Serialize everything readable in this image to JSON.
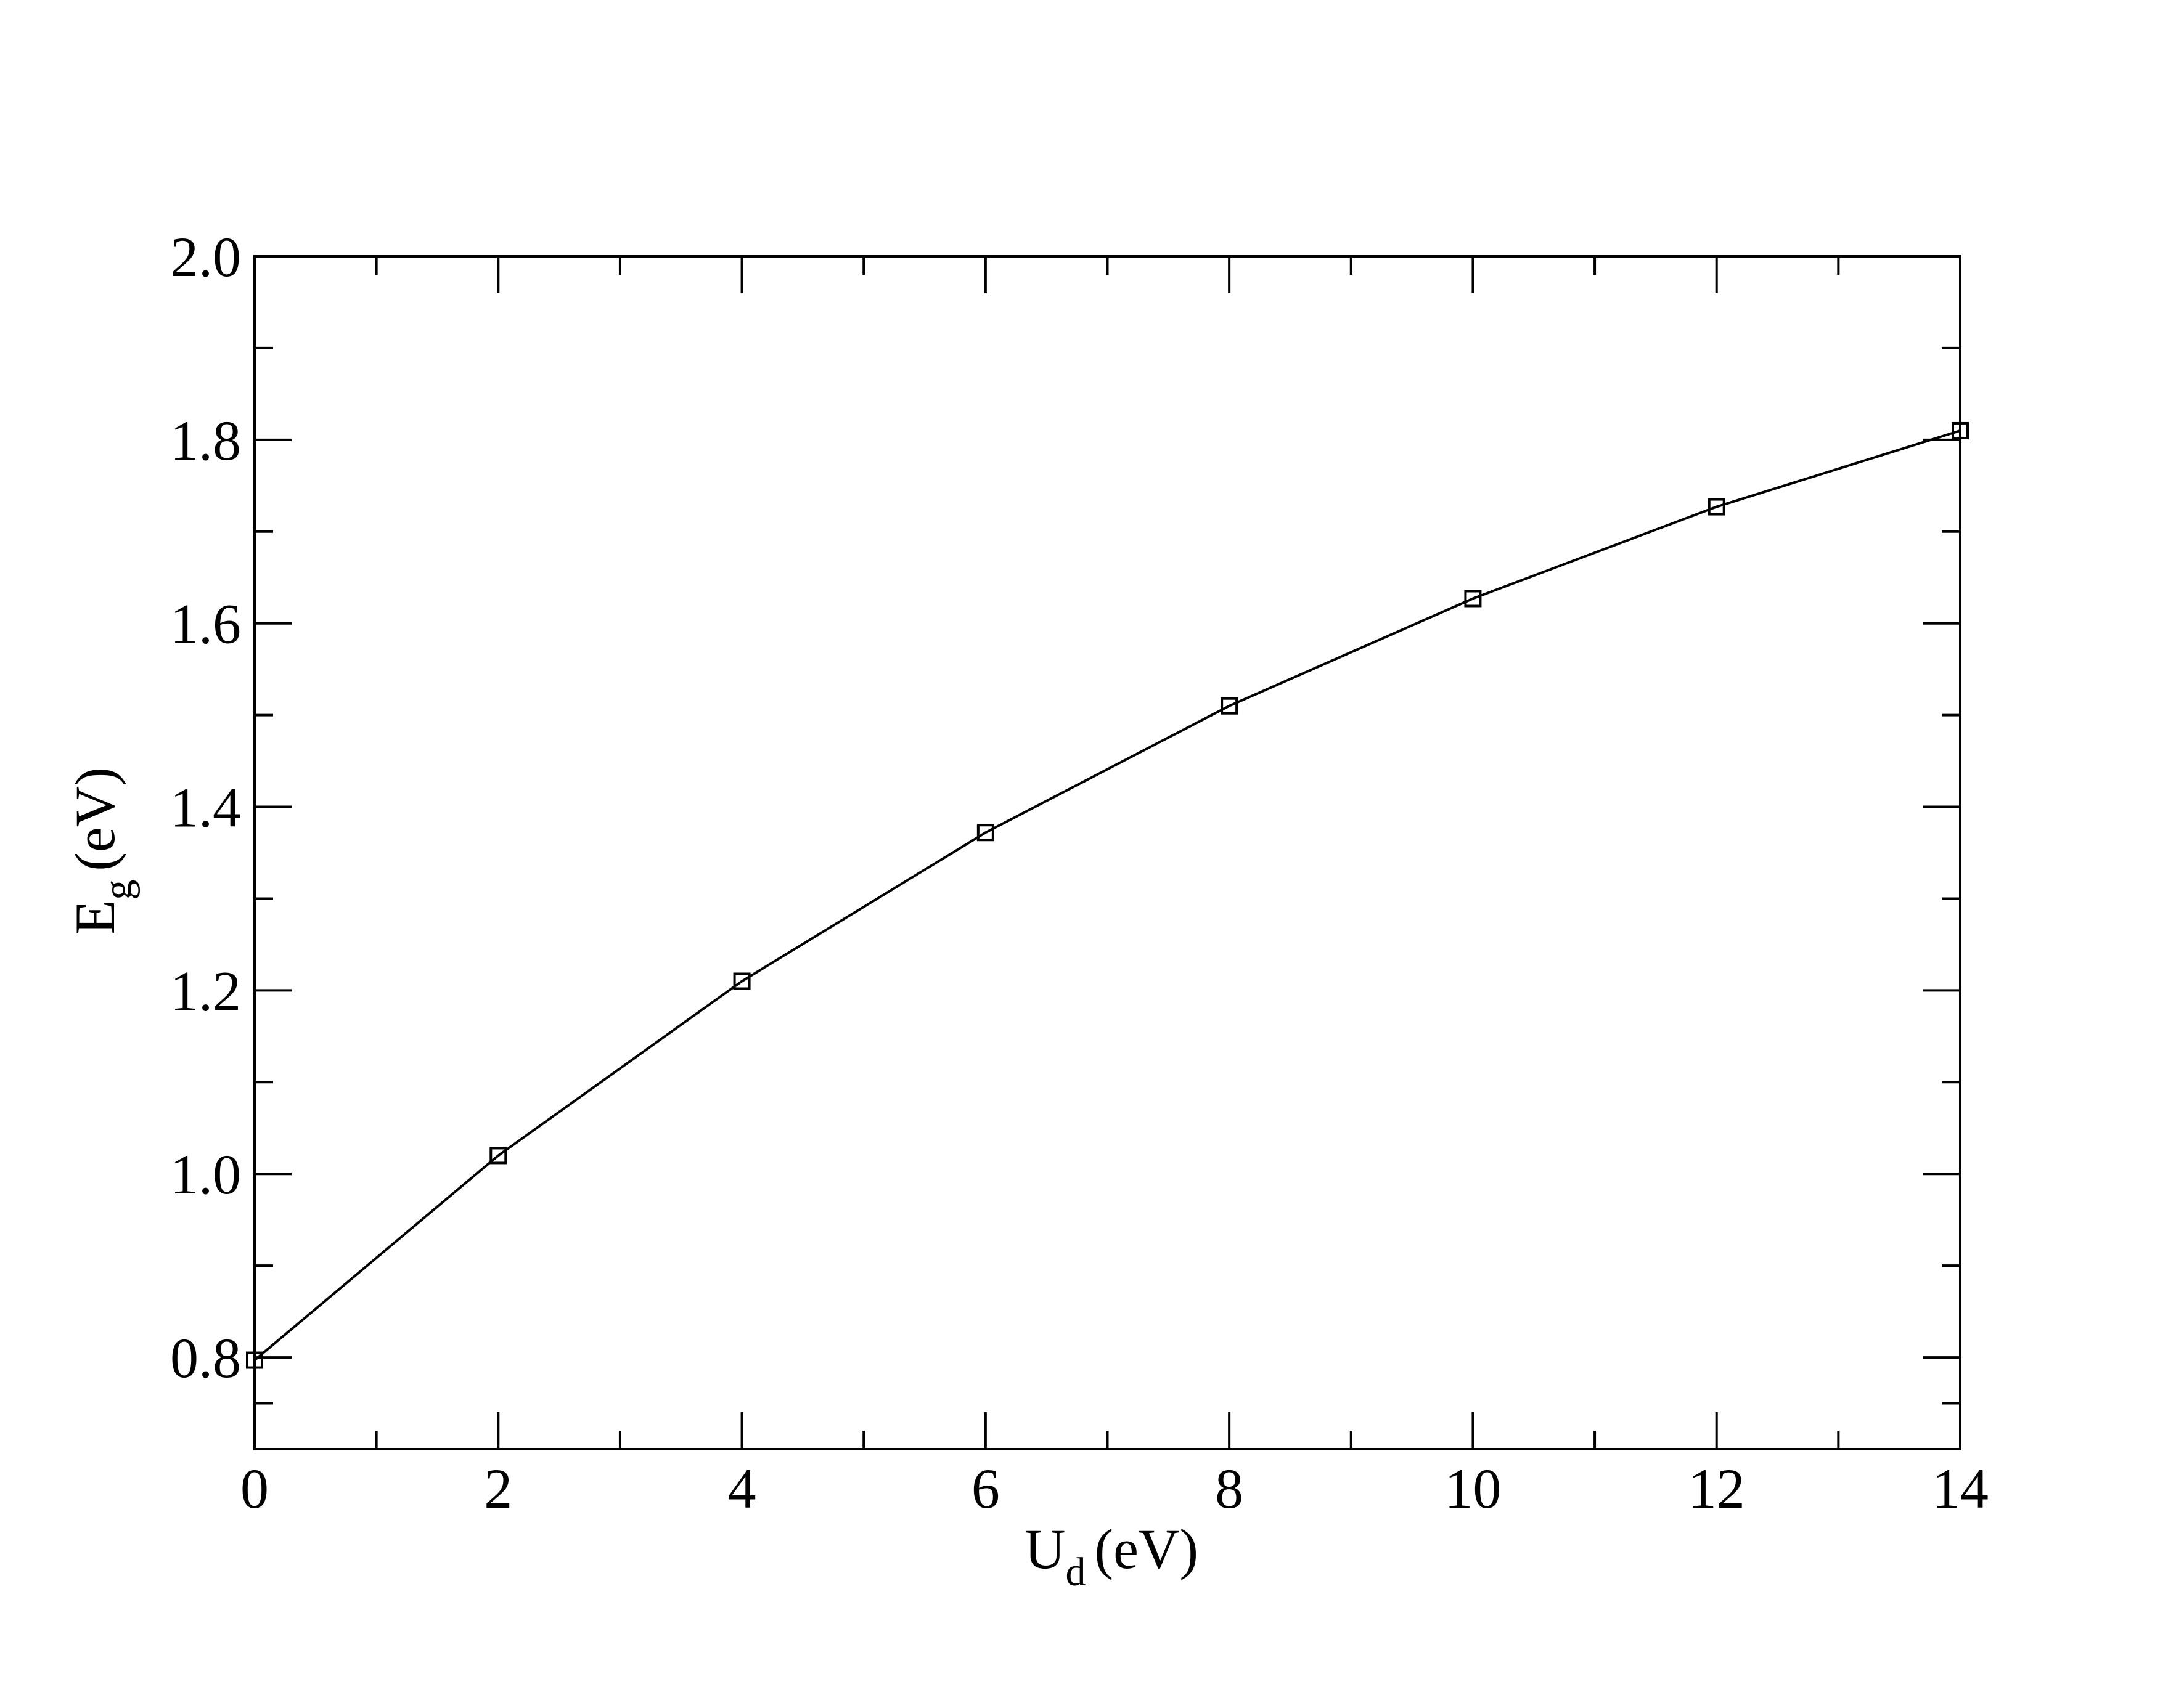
{
  "chart_data": {
    "type": "line",
    "x_label": {
      "main": "U",
      "sub": "d",
      "unit": "(eV)"
    },
    "y_label": {
      "main": "E",
      "sub": "g",
      "unit": "(eV)"
    },
    "x": [
      0,
      2,
      4,
      6,
      8,
      10,
      12,
      14
    ],
    "series": [
      {
        "color": "#000000",
        "marker": "square",
        "values": [
          0.797,
          1.02,
          1.21,
          1.372,
          1.51,
          1.627,
          1.727,
          1.81
        ]
      }
    ],
    "xlim": [
      0,
      14
    ],
    "xticks": [
      0,
      2,
      4,
      6,
      8,
      10,
      12,
      14
    ],
    "ylim": [
      0.7,
      2.0
    ],
    "yticks": [
      0.8,
      {
        "value": 1.0,
        "label": "1.0"
      },
      1.2,
      1.4,
      1.6,
      1.8,
      {
        "value": 2.0,
        "label": "2.0"
      }
    ]
  }
}
